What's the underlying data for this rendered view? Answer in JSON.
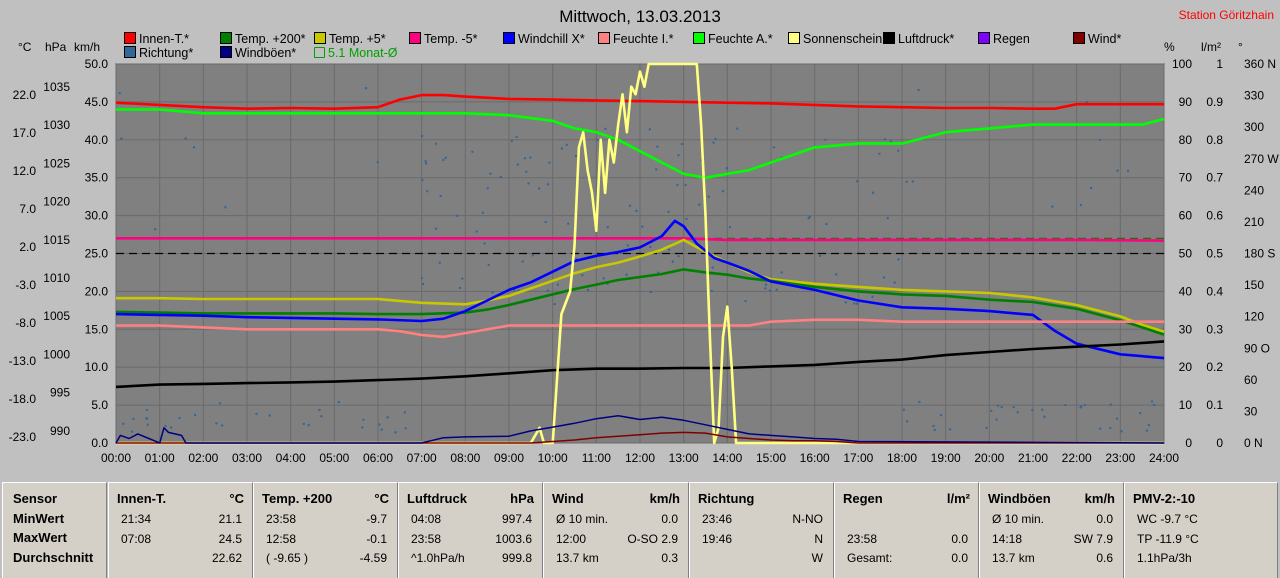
{
  "title": "Mittwoch, 13.03.2013",
  "station": "Station Göritzhain",
  "unit_labels": {
    "celsius": "°C",
    "hpa": "hPa",
    "kmh": "km/h",
    "percent": "%",
    "lm2": "l/m²",
    "degree": "°"
  },
  "legend": [
    {
      "label": "Innen-T.*",
      "color": "#ff0000"
    },
    {
      "label": "Temp. +200*",
      "color": "#008000"
    },
    {
      "label": "Temp. +5*",
      "color": "#c8c800"
    },
    {
      "label": "Temp. -5*",
      "color": "#ff0080"
    },
    {
      "label": "Windchill X*",
      "color": "#0000ff"
    },
    {
      "label": "Feuchte I.*",
      "color": "#ff8080"
    },
    {
      "label": "Feuchte A.*",
      "color": "#00ff00"
    },
    {
      "label": "Sonnenschein",
      "color": "#ffff80"
    },
    {
      "label": "Luftdruck*",
      "color": "#000000"
    },
    {
      "label": "Regen",
      "color": "#8000ff"
    },
    {
      "label": "Wind*",
      "color": "#800000"
    },
    {
      "label": "Richtung*",
      "color": "#336699"
    },
    {
      "label": "Windböen*",
      "color": "#000080"
    },
    {
      "label": "5.1 Monat-Ø",
      "color": "#00a000",
      "hollow": true
    }
  ],
  "chart_data": {
    "type": "line",
    "x_ticks": [
      "00:00",
      "01:00",
      "02:00",
      "03:00",
      "04:00",
      "05:00",
      "06:00",
      "07:00",
      "08:00",
      "09:00",
      "10:00",
      "11:00",
      "12:00",
      "13:00",
      "14:00",
      "15:00",
      "16:00",
      "17:00",
      "18:00",
      "19:00",
      "20:00",
      "21:00",
      "22:00",
      "23:00",
      "24:00"
    ],
    "axes": {
      "celsius": {
        "ticks": [
          "22.0",
          "17.0",
          "12.0",
          "7.0",
          "2.0",
          "-3.0",
          "-8.0",
          "-13.0",
          "-18.0",
          "-23.0"
        ],
        "range": [
          -23,
          27
        ]
      },
      "hpa": {
        "ticks": [
          "1035",
          "1030",
          "1025",
          "1020",
          "1015",
          "1010",
          "1005",
          "1000",
          "995",
          "990"
        ],
        "range": [
          990,
          1040
        ]
      },
      "kmh": {
        "ticks": [
          "50.0",
          "45.0",
          "40.0",
          "35.0",
          "30.0",
          "25.0",
          "20.0",
          "15.0",
          "10.0",
          "5.0",
          "0.0"
        ],
        "range": [
          0,
          50
        ]
      },
      "percent": {
        "ticks": [
          "100",
          "90",
          "80",
          "70",
          "60",
          "50",
          "40",
          "30",
          "20",
          "10",
          "0"
        ],
        "range": [
          0,
          100
        ]
      },
      "lm2": {
        "ticks": [
          "1",
          "0.9",
          "0.8",
          "0.7",
          "0.6",
          "0.5",
          "0.4",
          "0.3",
          "0.2",
          "0.1",
          "0"
        ],
        "range": [
          0,
          1
        ]
      },
      "degree": {
        "ticks": [
          "360 N",
          "330",
          "300",
          "270 W",
          "240",
          "210",
          "180 S",
          "150",
          "120",
          "90 O",
          "60",
          "30",
          "0 N"
        ],
        "range": [
          0,
          360
        ]
      }
    },
    "series": [
      {
        "name": "Innen-T.*",
        "axis": "celsius",
        "color": "#ff0000",
        "x": [
          0,
          1,
          2,
          3,
          4,
          5,
          6,
          6.5,
          7,
          7.5,
          8,
          9,
          10,
          11,
          12,
          13,
          14,
          15,
          16,
          17,
          18,
          19,
          20,
          21,
          21.5,
          22,
          23,
          24
        ],
        "y": [
          21.9,
          21.6,
          21.3,
          21.1,
          21.2,
          21.1,
          21.3,
          22.3,
          22.9,
          22.9,
          22.7,
          22.4,
          22.3,
          22.2,
          22.1,
          22.0,
          21.9,
          21.8,
          21.6,
          21.4,
          21.3,
          21.2,
          21.2,
          21.1,
          21.1,
          21.7,
          21.7,
          21.7
        ]
      },
      {
        "name": "Feuchte A.*",
        "axis": "percent",
        "color": "#00ff00",
        "x": [
          0,
          1,
          2,
          3,
          4,
          5,
          6,
          7,
          8,
          9,
          10,
          10.5,
          11,
          11.5,
          12,
          12.5,
          13,
          13.5,
          14,
          14.5,
          15,
          16,
          17,
          18,
          19,
          20,
          21,
          22,
          23,
          23.5,
          24
        ],
        "y": [
          88,
          88,
          87,
          87,
          87,
          87,
          87,
          87,
          87,
          86.5,
          85,
          83,
          82,
          80,
          77,
          74,
          71,
          70,
          71,
          72,
          74,
          78,
          79,
          79,
          82,
          83,
          84,
          84,
          84,
          84,
          85.5
        ]
      },
      {
        "name": "Temp. -5*",
        "axis": "celsius",
        "color": "#ff0080",
        "x": [
          0,
          2,
          4,
          6,
          8,
          10,
          12,
          13,
          14,
          16,
          18,
          20,
          22,
          24
        ],
        "y": [
          4.0,
          4.0,
          4.0,
          4.0,
          4.0,
          4.0,
          4.0,
          4.0,
          3.8,
          3.8,
          3.8,
          3.8,
          3.8,
          3.7
        ]
      },
      {
        "name": "Temp. +5*",
        "axis": "celsius",
        "color": "#c8c800",
        "x": [
          0,
          1,
          2,
          3,
          4,
          5,
          6,
          7,
          8,
          8.5,
          9,
          9.5,
          10,
          10.5,
          11,
          11.5,
          12,
          12.5,
          13,
          13.5,
          14,
          14.5,
          15,
          16,
          17,
          18,
          19,
          20,
          21,
          22,
          23,
          23.5,
          24
        ],
        "y": [
          -3.9,
          -3.9,
          -4.0,
          -4.0,
          -4.0,
          -4.0,
          -4.0,
          -4.5,
          -4.7,
          -4.2,
          -3.6,
          -2.6,
          -1.6,
          -0.6,
          0.2,
          0.8,
          1.6,
          2.5,
          3.8,
          2.2,
          0.8,
          -0.5,
          -1.4,
          -2.0,
          -2.4,
          -2.8,
          -3.0,
          -3.2,
          -3.8,
          -4.8,
          -6.3,
          -7.4,
          -8.3
        ]
      },
      {
        "name": "Temp. +200*",
        "axis": "celsius",
        "color": "#008000",
        "x": [
          0,
          1,
          2,
          3,
          4,
          5,
          6,
          7,
          8,
          8.5,
          9,
          9.5,
          10,
          10.5,
          11,
          11.5,
          12,
          12.5,
          13,
          13.5,
          14,
          14.5,
          15,
          16,
          17,
          18,
          19,
          20,
          21,
          22,
          23,
          24
        ],
        "y": [
          -5.7,
          -5.8,
          -5.9,
          -5.9,
          -5.9,
          -5.9,
          -6.0,
          -6.0,
          -5.8,
          -5.4,
          -4.8,
          -4.1,
          -3.4,
          -2.7,
          -2.1,
          -1.5,
          -1.1,
          -0.7,
          -0.1,
          -0.5,
          -0.8,
          -1.3,
          -1.6,
          -2.4,
          -3.0,
          -3.4,
          -3.6,
          -4.1,
          -4.4,
          -5.3,
          -6.8,
          -8.7
        ]
      },
      {
        "name": "Windchill X*",
        "axis": "celsius",
        "color": "#0000ff",
        "x": [
          0,
          1,
          2,
          3,
          4,
          5,
          6,
          7,
          7.5,
          8,
          8.5,
          9,
          9.5,
          10,
          10.5,
          11,
          11.5,
          12,
          12.5,
          12.8,
          13,
          13.3,
          13.7,
          14,
          14.5,
          15,
          16,
          17,
          18,
          19,
          20,
          21,
          21.5,
          22,
          23,
          24
        ],
        "y": [
          -6.0,
          -6.1,
          -6.2,
          -6.4,
          -6.5,
          -6.6,
          -6.7,
          -6.9,
          -6.6,
          -5.6,
          -4.2,
          -2.8,
          -1.8,
          -0.4,
          1.0,
          1.7,
          2.2,
          2.8,
          4.3,
          6.3,
          5.6,
          3.3,
          1.4,
          0.8,
          -0.3,
          -1.7,
          -2.8,
          -4.2,
          -5.1,
          -5.3,
          -5.6,
          -6.1,
          -8.2,
          -9.9,
          -11.3,
          -11.8
        ]
      },
      {
        "name": "Feuchte I.*",
        "axis": "percent",
        "color": "#ff8080",
        "x": [
          0,
          1,
          2,
          3,
          4,
          5,
          6,
          6.5,
          7,
          7.5,
          8,
          9,
          10,
          11,
          12,
          13,
          14,
          14.5,
          15,
          16,
          17,
          18,
          19,
          20,
          21,
          22,
          23,
          24
        ],
        "y": [
          31,
          31,
          30.5,
          30,
          30,
          30,
          30,
          29.5,
          28.5,
          28,
          29,
          31,
          31,
          31,
          31,
          31,
          31,
          31,
          32,
          32.5,
          32.5,
          32,
          32,
          32,
          32,
          32,
          32,
          32
        ]
      },
      {
        "name": "Luftdruck*",
        "axis": "hpa",
        "color": "#000000",
        "x": [
          0,
          1,
          2,
          3,
          4,
          5,
          6,
          7,
          8,
          9,
          10,
          11,
          12,
          13,
          14,
          15,
          16,
          17,
          18,
          19,
          20,
          21,
          22,
          23,
          24
        ],
        "y": [
          997.4,
          997.7,
          997.8,
          997.9,
          998.0,
          998.1,
          998.3,
          998.5,
          998.8,
          999.2,
          999.6,
          999.8,
          999.8,
          999.9,
          999.9,
          1000.1,
          1000.3,
          1000.7,
          1001.0,
          1001.6,
          1002.0,
          1002.4,
          1002.7,
          1003.0,
          1003.4
        ]
      },
      {
        "name": "Sonnenschein",
        "axis": "kmh",
        "color": "#ffff80",
        "x": [
          0,
          9.5,
          9.7,
          9.8,
          10.0,
          10.2,
          10.4,
          10.5,
          10.6,
          10.7,
          10.8,
          10.9,
          11.0,
          11.1,
          11.2,
          11.3,
          11.4,
          11.5,
          11.6,
          11.7,
          11.8,
          11.9,
          12.0,
          12.1,
          12.2,
          12.4,
          13.0,
          13.3,
          13.4,
          13.5,
          13.6,
          13.7,
          13.8,
          13.9,
          14.0,
          14.1,
          14.2,
          14.3,
          14.4,
          24
        ],
        "y": [
          0,
          0,
          2,
          0,
          0,
          17,
          20,
          26,
          39,
          41,
          36,
          33,
          28,
          40,
          33,
          40,
          37,
          42,
          46,
          41,
          47,
          46,
          49,
          47,
          50,
          50,
          50,
          50,
          42,
          30,
          14,
          0,
          2,
          14,
          18,
          10,
          0,
          0,
          0,
          0
        ]
      },
      {
        "name": "Wind*",
        "axis": "kmh",
        "color": "#800000",
        "x": [
          0,
          9.5,
          10,
          10.5,
          11,
          11.5,
          12,
          12.5,
          13,
          13.5,
          14,
          14.5,
          15,
          15.5,
          16,
          16.5,
          17,
          24
        ],
        "y": [
          0,
          0,
          0.2,
          0.4,
          0.7,
          0.9,
          1.1,
          1.3,
          1.4,
          1.3,
          0.8,
          0.6,
          0.4,
          0.3,
          0.3,
          0.2,
          0,
          0
        ]
      },
      {
        "name": "Windböen*",
        "axis": "kmh",
        "color": "#000080",
        "x": [
          0,
          0.1,
          0.3,
          0.5,
          1.0,
          1.1,
          1.2,
          1.5,
          1.6,
          2,
          7,
          7.5,
          8,
          9,
          9.5,
          10,
          10.5,
          11,
          11.5,
          12,
          12.5,
          13,
          13.5,
          14,
          14.5,
          15,
          15.5,
          16,
          16.5,
          17,
          24
        ],
        "y": [
          0,
          1.0,
          0.6,
          1.2,
          0,
          2.0,
          1.4,
          1.0,
          0,
          0,
          0,
          0.7,
          0.8,
          0.9,
          1.6,
          2.1,
          2.6,
          3.2,
          3.6,
          3.1,
          3.4,
          3.0,
          2.4,
          1.8,
          1.2,
          1.0,
          0.8,
          0.6,
          0.5,
          0.2,
          0
        ]
      }
    ],
    "reference_lines": [
      {
        "axis": "celsius",
        "value": 4.0,
        "color": "#008000",
        "dash": true
      },
      {
        "axis": "percent",
        "value": 50,
        "color": "#000000",
        "dash": true
      }
    ],
    "scatter": {
      "name": "Richtung*",
      "axis": "degree",
      "color": "#336699"
    }
  },
  "table": {
    "row_labels": [
      "Sensor",
      "MinWert",
      "MaxWert",
      "Durchschnitt"
    ],
    "panels": [
      {
        "title": "Innen-T.",
        "unit": "°C",
        "rows": [
          [
            "21:34",
            "21.1"
          ],
          [
            "07:08",
            "24.5"
          ],
          [
            "",
            "22.62"
          ]
        ]
      },
      {
        "title": "Temp. +200",
        "unit": "°C",
        "rows": [
          [
            "23:58",
            "-9.7"
          ],
          [
            "12:58",
            "-0.1"
          ],
          [
            "( -9.65 )",
            "-4.59"
          ]
        ]
      },
      {
        "title": "Luftdruck",
        "unit": "hPa",
        "rows": [
          [
            "04:08",
            "997.4"
          ],
          [
            "23:58",
            "1003.6"
          ],
          [
            "^1.0hPa/h",
            "999.8"
          ]
        ]
      },
      {
        "title": "Wind",
        "unit": "km/h",
        "rows": [
          [
            "Ø 10 min.",
            "0.0"
          ],
          [
            "12:00",
            "O-SO 2.9"
          ],
          [
            "13.7 km",
            "0.3"
          ]
        ]
      },
      {
        "title": "Richtung",
        "unit": "",
        "rows": [
          [
            "23:46",
            "N-NO"
          ],
          [
            "19:46",
            "N"
          ],
          [
            "",
            "W"
          ]
        ]
      },
      {
        "title": "Regen",
        "unit": "l/m²",
        "rows": [
          [
            "",
            ""
          ],
          [
            "23:58",
            "0.0"
          ],
          [
            "Gesamt:",
            "0.0"
          ]
        ]
      },
      {
        "title": "Windböen",
        "unit": "km/h",
        "rows": [
          [
            "Ø 10 min.",
            "0.0"
          ],
          [
            "14:18",
            "SW 7.9"
          ],
          [
            "13.7 km",
            "0.6"
          ]
        ]
      },
      {
        "title": "PMV-2:-10",
        "unit": "",
        "rows": [
          [
            "WC -9.7 °C",
            ""
          ],
          [
            "TP -11.9 °C",
            ""
          ],
          [
            "1.1hPa/3h",
            ""
          ]
        ]
      }
    ]
  }
}
